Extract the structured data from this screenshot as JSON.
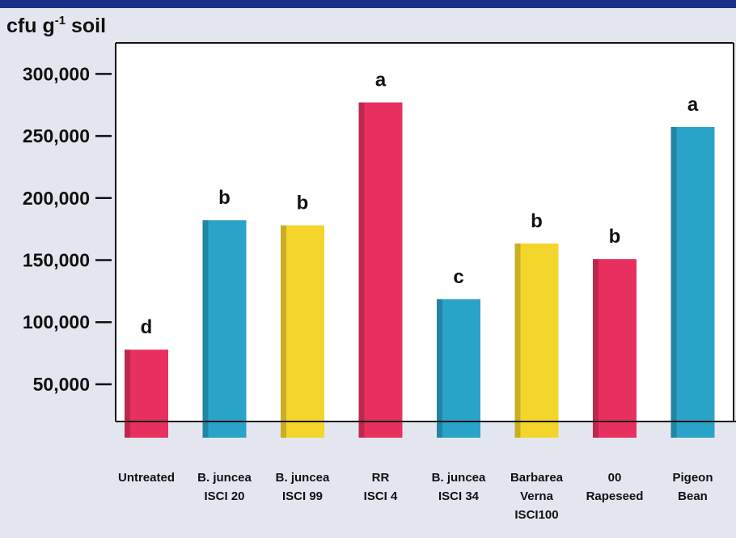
{
  "chart_data": {
    "type": "bar",
    "ylabel_main": "cfu g",
    "ylabel_sup": "-1",
    "ylabel_tail": " soil",
    "categories": [
      [
        "Untreated"
      ],
      [
        "B. juncea",
        "ISCI 20"
      ],
      [
        "B. juncea",
        "ISCI 99"
      ],
      [
        "RR",
        "ISCI 4"
      ],
      [
        "B. juncea",
        "ISCI 34"
      ],
      [
        "Barbarea",
        "Verna",
        "ISCI100"
      ],
      [
        "00",
        "Rapeseed"
      ],
      [
        "Pigeon",
        "Bean"
      ]
    ],
    "values": [
      88000,
      188000,
      184000,
      279000,
      127000,
      170000,
      158000,
      260000
    ],
    "significance": [
      "d",
      "b",
      "b",
      "a",
      "c",
      "b",
      "b",
      "a"
    ],
    "colors": [
      "#e8305f",
      "#2aa3c9",
      "#f4d52c",
      "#e8305f",
      "#2aa3c9",
      "#f4d52c",
      "#e8305f",
      "#2aa3c9"
    ],
    "yticks": [
      50000,
      100000,
      150000,
      200000,
      250000,
      300000
    ],
    "ytick_labels": [
      "50,000",
      "100,000",
      "150,000",
      "200,000",
      "250,000",
      "300,000"
    ],
    "ylim": [
      20000,
      325000
    ],
    "grid": false
  }
}
